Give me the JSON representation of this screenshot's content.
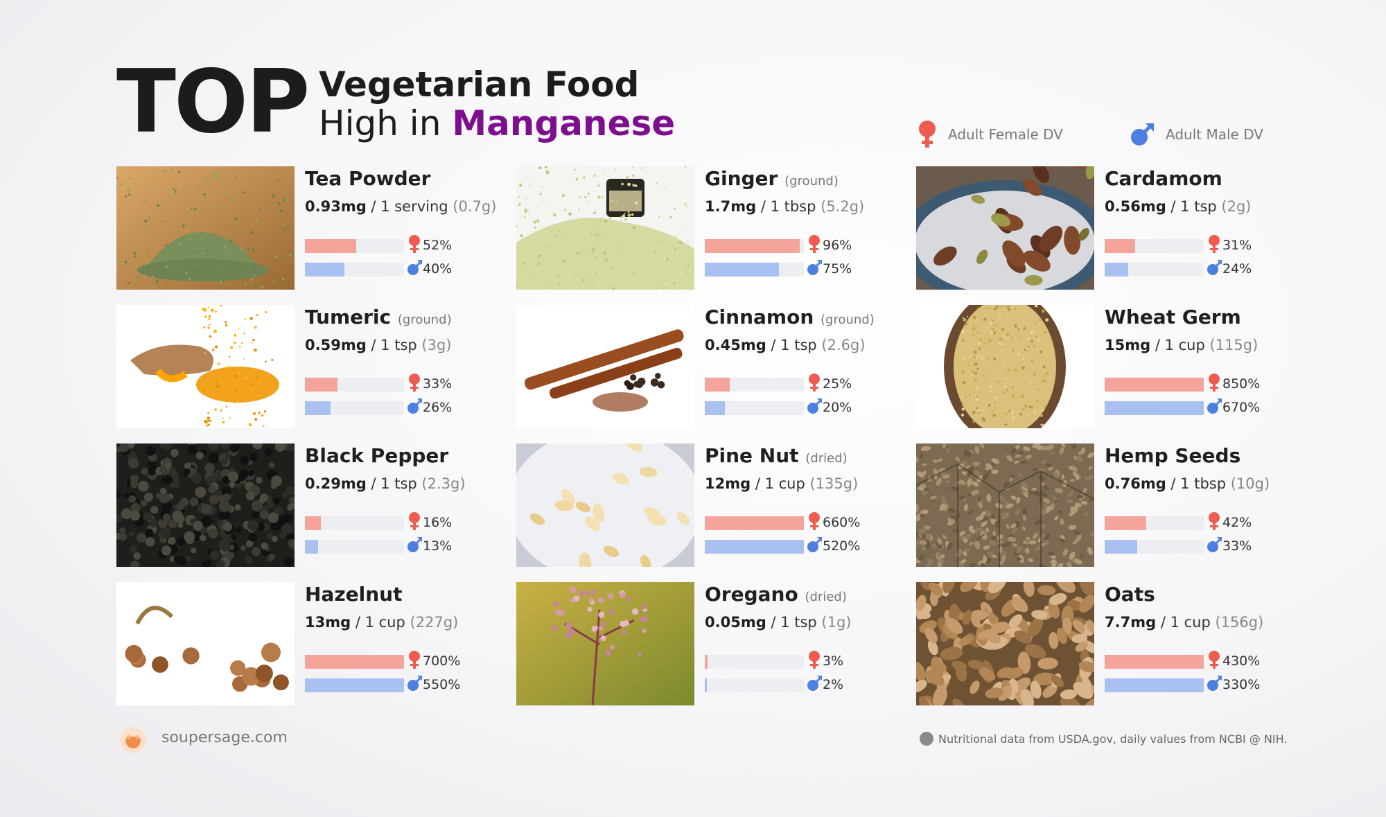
{
  "header": {
    "top_word": "TOP",
    "line1": "Vegetarian Food",
    "line2_prefix": "High in",
    "line2_accent": "Manganese"
  },
  "legend": {
    "female_label": "Adult Female DV",
    "male_label": "Adult Male DV",
    "female_color": "#ee5b4f",
    "male_color": "#4d7fe0"
  },
  "foods": [
    {
      "name": "Tea Powder",
      "note": "",
      "amount": "0.93mg",
      "serving": "/ 1 serving",
      "grams": "(0.7g)",
      "female_pct": "52%",
      "male_pct": "40%",
      "female_frac": 0.52,
      "male_frac": 0.4,
      "photo": "green-tea-powder-pile"
    },
    {
      "name": "Ginger",
      "note": "(ground)",
      "amount": "1.7mg",
      "serving": "/ 1 tbsp",
      "grams": "(5.2g)",
      "female_pct": "96%",
      "male_pct": "75%",
      "female_frac": 0.96,
      "male_frac": 0.75,
      "photo": "ground-ginger-jar"
    },
    {
      "name": "Cardamom",
      "note": "",
      "amount": "0.56mg",
      "serving": "/ 1 tsp",
      "grams": "(2g)",
      "female_pct": "31%",
      "male_pct": "24%",
      "female_frac": 0.31,
      "male_frac": 0.24,
      "photo": "cardamom-pods-plate"
    },
    {
      "name": "Tumeric",
      "note": "(ground)",
      "amount": "0.59mg",
      "serving": "/ 1 tsp",
      "grams": "(3g)",
      "female_pct": "33%",
      "male_pct": "26%",
      "female_frac": 0.33,
      "male_frac": 0.26,
      "photo": "turmeric-root-powder"
    },
    {
      "name": "Cinnamon",
      "note": "(ground)",
      "amount": "0.45mg",
      "serving": "/ 1 tsp",
      "grams": "(2.6g)",
      "female_pct": "25%",
      "male_pct": "20%",
      "female_frac": 0.25,
      "male_frac": 0.2,
      "photo": "cinnamon-sticks"
    },
    {
      "name": "Wheat Germ",
      "note": "",
      "amount": "15mg",
      "serving": "/ 1 cup",
      "grams": "(115g)",
      "female_pct": "850%",
      "male_pct": "670%",
      "female_frac": 1.0,
      "male_frac": 1.0,
      "photo": "wheat-germ-bowl"
    },
    {
      "name": "Black Pepper",
      "note": "",
      "amount": "0.29mg",
      "serving": "/ 1 tsp",
      "grams": "(2.3g)",
      "female_pct": "16%",
      "male_pct": "13%",
      "female_frac": 0.16,
      "male_frac": 0.13,
      "photo": "black-peppercorns"
    },
    {
      "name": "Pine Nut",
      "note": "(dried)",
      "amount": "12mg",
      "serving": "/ 1 cup",
      "grams": "(135g)",
      "female_pct": "660%",
      "male_pct": "520%",
      "female_frac": 1.0,
      "male_frac": 1.0,
      "photo": "pine-nuts-plate"
    },
    {
      "name": "Hemp Seeds",
      "note": "",
      "amount": "0.76mg",
      "serving": "/ 1 tbsp",
      "grams": "(10g)",
      "female_pct": "42%",
      "male_pct": "33%",
      "female_frac": 0.42,
      "male_frac": 0.33,
      "photo": "hemp-seeds"
    },
    {
      "name": "Hazelnut",
      "note": "",
      "amount": "13mg",
      "serving": "/ 1 cup",
      "grams": "(227g)",
      "female_pct": "700%",
      "male_pct": "550%",
      "female_frac": 1.0,
      "male_frac": 1.0,
      "photo": "hazelnuts"
    },
    {
      "name": "Oregano",
      "note": "(dried)",
      "amount": "0.05mg",
      "serving": "/ 1 tsp",
      "grams": "(1g)",
      "female_pct": "3%",
      "male_pct": "2%",
      "female_frac": 0.03,
      "male_frac": 0.02,
      "photo": "oregano-flowers"
    },
    {
      "name": "Oats",
      "note": "",
      "amount": "7.7mg",
      "serving": "/ 1 cup",
      "grams": "(156g)",
      "female_pct": "430%",
      "male_pct": "330%",
      "female_frac": 1.0,
      "male_frac": 1.0,
      "photo": "rolled-oats"
    }
  ],
  "footer": {
    "site": "soupersage.com",
    "note": "Nutritional data from USDA.gov, daily values from NCBI @ NIH."
  }
}
